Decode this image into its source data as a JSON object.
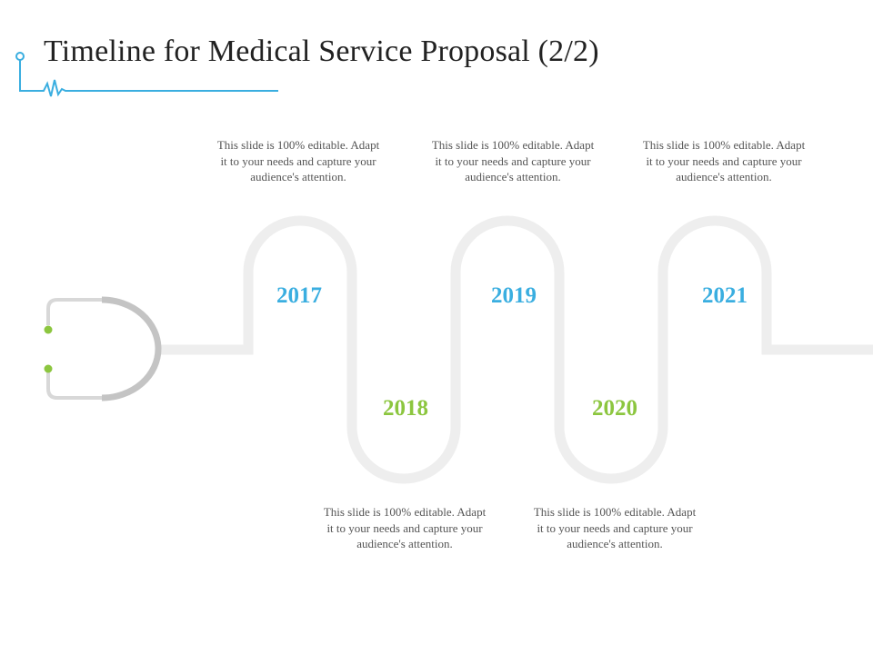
{
  "title": "Timeline for Medical Service Proposal (2/2)",
  "colors": {
    "accent_blue": "#3aaee0",
    "accent_green": "#8cc63f",
    "track": "#eeeeee",
    "stethoscope": "#c4c4c4"
  },
  "decor": {
    "header_icon": "heartbeat-line-icon",
    "left_icon": "stethoscope-icon"
  },
  "milestones": [
    {
      "year": "2017",
      "text": "This slide is 100% editable. Adapt it to your needs and capture your audience's attention."
    },
    {
      "year": "2018",
      "text": "This slide is 100% editable. Adapt it to your needs and capture your audience's attention."
    },
    {
      "year": "2019",
      "text": "This slide is 100% editable. Adapt it to your needs and capture your audience's attention."
    },
    {
      "year": "2020",
      "text": "This slide is 100% editable. Adapt it to your needs and capture your audience's attention."
    },
    {
      "year": "2021",
      "text": "This slide is 100% editable. Adapt it to your needs and capture your audience's attention."
    }
  ]
}
